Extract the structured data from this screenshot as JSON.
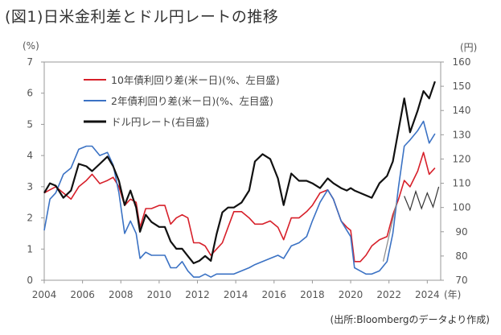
{
  "title": "(図1)日米金利差とドル円レートの推移",
  "source": "(出所:Bloombergのデータより作成)",
  "chart_data": {
    "type": "line",
    "left_unit": "(%)",
    "right_unit": "(円)",
    "x_unit": "(年)",
    "xlim": [
      2004,
      2024.7
    ],
    "ylim_left": [
      0,
      7
    ],
    "ylim_right": [
      70,
      160
    ],
    "x_ticks": [
      "2004",
      "2006",
      "2008",
      "2010",
      "2012",
      "2014",
      "2016",
      "2018",
      "2020",
      "2022",
      "2024"
    ],
    "left_ticks": [
      "0",
      "1",
      "2",
      "3",
      "4",
      "5",
      "6",
      "7"
    ],
    "right_ticks": [
      "70",
      "80",
      "90",
      "100",
      "110",
      "120",
      "130",
      "140",
      "150",
      "160"
    ],
    "legend_position": "top-left",
    "series": [
      {
        "name": "10年債利回り差(米ー日)(%、左目盛)",
        "axis": "left",
        "color": "#d7202a",
        "x": [
          2004.0,
          2004.3,
          2004.6,
          2005.0,
          2005.4,
          2005.8,
          2006.2,
          2006.5,
          2006.9,
          2007.3,
          2007.6,
          2007.9,
          2008.2,
          2008.5,
          2008.8,
          2009.0,
          2009.3,
          2009.6,
          2010.0,
          2010.3,
          2010.6,
          2010.9,
          2011.2,
          2011.5,
          2011.8,
          2012.1,
          2012.4,
          2012.7,
          2013.0,
          2013.3,
          2013.6,
          2013.9,
          2014.3,
          2014.7,
          2015.0,
          2015.4,
          2015.8,
          2016.2,
          2016.5,
          2016.9,
          2017.3,
          2017.7,
          2018.0,
          2018.4,
          2018.8,
          2019.1,
          2019.5,
          2019.8,
          2020.0,
          2020.2,
          2020.5,
          2020.8,
          2021.1,
          2021.5,
          2021.9,
          2022.2,
          2022.5,
          2022.8,
          2023.1,
          2023.5,
          2023.8,
          2024.1,
          2024.4
        ],
        "y": [
          2.8,
          2.9,
          3.0,
          2.8,
          2.6,
          3.0,
          3.2,
          3.4,
          3.1,
          3.2,
          3.3,
          3.0,
          2.4,
          2.6,
          2.5,
          1.7,
          2.3,
          2.3,
          2.4,
          2.4,
          1.8,
          2.0,
          2.1,
          2.0,
          1.2,
          1.2,
          1.1,
          0.8,
          1.0,
          1.2,
          1.7,
          2.2,
          2.2,
          2.0,
          1.8,
          1.8,
          1.9,
          1.7,
          1.3,
          2.0,
          2.0,
          2.2,
          2.4,
          2.8,
          2.9,
          2.6,
          1.9,
          1.7,
          1.6,
          0.6,
          0.6,
          0.8,
          1.1,
          1.3,
          1.4,
          2.1,
          2.6,
          3.2,
          3.0,
          3.5,
          4.1,
          3.4,
          3.6
        ]
      },
      {
        "name": "2年債利回り差(米ー日)(%、左目盛)",
        "axis": "left",
        "color": "#3b72c4",
        "x": [
          2004.0,
          2004.3,
          2004.6,
          2005.0,
          2005.4,
          2005.8,
          2006.2,
          2006.5,
          2006.9,
          2007.3,
          2007.6,
          2007.9,
          2008.2,
          2008.5,
          2008.8,
          2009.0,
          2009.3,
          2009.6,
          2010.0,
          2010.3,
          2010.6,
          2010.9,
          2011.2,
          2011.5,
          2011.8,
          2012.1,
          2012.4,
          2012.7,
          2013.0,
          2013.3,
          2013.6,
          2013.9,
          2014.3,
          2014.7,
          2015.0,
          2015.4,
          2015.8,
          2016.2,
          2016.5,
          2016.9,
          2017.3,
          2017.7,
          2018.0,
          2018.4,
          2018.8,
          2019.1,
          2019.5,
          2019.8,
          2020.0,
          2020.2,
          2020.5,
          2020.8,
          2021.1,
          2021.5,
          2021.9,
          2022.2,
          2022.5,
          2022.8,
          2023.1,
          2023.5,
          2023.8,
          2024.1,
          2024.4
        ],
        "y": [
          1.6,
          2.6,
          2.8,
          3.4,
          3.6,
          4.2,
          4.3,
          4.3,
          4.0,
          4.1,
          3.7,
          2.8,
          1.5,
          1.9,
          1.5,
          0.7,
          0.9,
          0.8,
          0.8,
          0.8,
          0.4,
          0.4,
          0.6,
          0.3,
          0.1,
          0.1,
          0.2,
          0.1,
          0.2,
          0.2,
          0.2,
          0.2,
          0.3,
          0.4,
          0.5,
          0.6,
          0.7,
          0.8,
          0.7,
          1.1,
          1.2,
          1.4,
          1.9,
          2.5,
          2.9,
          2.6,
          1.9,
          1.6,
          1.4,
          0.4,
          0.3,
          0.2,
          0.2,
          0.3,
          0.6,
          1.5,
          3.0,
          4.3,
          4.5,
          4.8,
          5.1,
          4.4,
          4.7
        ]
      },
      {
        "name": "ドル円レート(右目盛)",
        "axis": "right",
        "color": "#111111",
        "x": [
          2004.0,
          2004.3,
          2004.6,
          2005.0,
          2005.4,
          2005.8,
          2006.2,
          2006.5,
          2006.9,
          2007.3,
          2007.6,
          2007.9,
          2008.2,
          2008.5,
          2008.8,
          2009.0,
          2009.3,
          2009.6,
          2010.0,
          2010.3,
          2010.6,
          2010.9,
          2011.2,
          2011.5,
          2011.8,
          2012.1,
          2012.4,
          2012.7,
          2013.0,
          2013.3,
          2013.6,
          2013.9,
          2014.3,
          2014.7,
          2015.0,
          2015.4,
          2015.8,
          2016.2,
          2016.5,
          2016.9,
          2017.3,
          2017.7,
          2018.0,
          2018.4,
          2018.8,
          2019.1,
          2019.5,
          2019.8,
          2020.0,
          2020.2,
          2020.5,
          2020.8,
          2021.1,
          2021.5,
          2021.9,
          2022.2,
          2022.5,
          2022.8,
          2023.1,
          2023.5,
          2023.8,
          2024.1,
          2024.4
        ],
        "y": [
          106,
          110,
          109,
          104,
          107,
          118,
          117,
          115,
          118,
          121,
          117,
          111,
          101,
          107,
          100,
          90,
          97,
          94,
          92,
          92,
          86,
          83,
          83,
          80,
          77,
          78,
          80,
          78,
          89,
          98,
          100,
          100,
          102,
          107,
          119,
          122,
          120,
          112,
          101,
          114,
          111,
          111,
          110,
          108,
          112,
          110,
          108,
          107,
          108,
          107,
          106,
          105,
          104,
          110,
          113,
          119,
          132,
          145,
          131,
          140,
          148,
          145,
          152
        ]
      }
    ]
  }
}
